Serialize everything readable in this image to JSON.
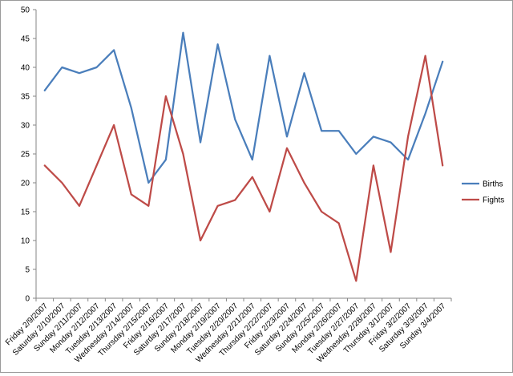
{
  "chart_data": {
    "type": "line",
    "title": "",
    "xlabel": "",
    "ylabel": "",
    "ylim": [
      0,
      50
    ],
    "y_ticks": [
      0,
      5,
      10,
      15,
      20,
      25,
      30,
      35,
      40,
      45,
      50
    ],
    "grid": false,
    "legend_position": "right",
    "categories": [
      "Friday 2/9/2007",
      "Saturday 2/10/2007",
      "Sunday 2/11/2007",
      "Monday 2/12/2007",
      "Tuesday 2/13/2007",
      "Wednesday 2/14/2007",
      "Thursday 2/15/2007",
      "Friday 2/16/2007",
      "Saturday 2/17/2007",
      "Sunday 2/18/2007",
      "Monday 2/19/2007",
      "Tuesday 2/20/2007",
      "Wednesday 2/21/2007",
      "Thursday 2/22/2007",
      "Friday 2/23/2007",
      "Saturday 2/24/2007",
      "Sunday 2/25/2007",
      "Monday 2/26/2007",
      "Tuesday 2/27/2007",
      "Wednesday 2/28/2007",
      "Thursday 3/1/2007",
      "Friday 3/2/2007",
      "Saturday 3/3/2007",
      "Sunday 3/4/2007"
    ],
    "series": [
      {
        "name": "Births",
        "color": "#4a7ebb",
        "values": [
          36,
          40,
          39,
          40,
          43,
          33,
          20,
          24,
          46,
          27,
          44,
          31,
          24,
          42,
          28,
          39,
          29,
          29,
          25,
          28,
          27,
          24,
          32,
          41
        ]
      },
      {
        "name": "Fights",
        "color": "#be4b48",
        "values": [
          23,
          20,
          16,
          23,
          30,
          18,
          16,
          35,
          25,
          10,
          16,
          17,
          21,
          15,
          26,
          20,
          15,
          13,
          3,
          23,
          8,
          28,
          42,
          23
        ]
      }
    ]
  }
}
